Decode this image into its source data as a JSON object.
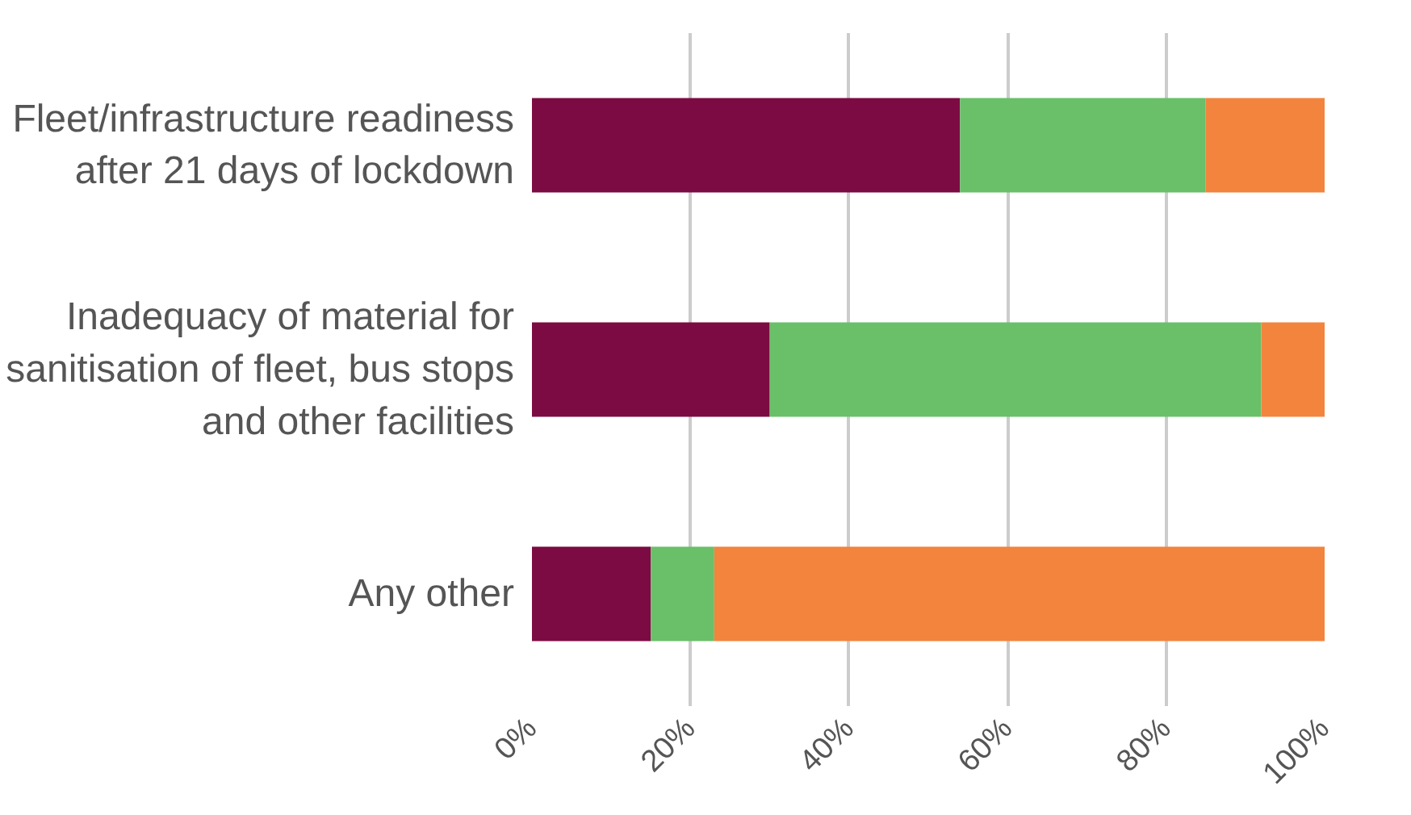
{
  "chart_data": {
    "type": "bar",
    "orientation": "horizontal",
    "stacked": true,
    "categories": [
      "Fleet/infrastructure readiness after 21 days of lockdown",
      "Inadequacy of material for sanitisation of fleet, bus stops and other facilities",
      "Any other"
    ],
    "series": [
      {
        "color": "#7b0b42",
        "values": [
          54,
          30,
          15
        ]
      },
      {
        "color": "#6abf69",
        "values": [
          31,
          62,
          8
        ]
      },
      {
        "color": "#f2843e",
        "values": [
          15,
          8,
          77
        ]
      }
    ],
    "xlim": [
      0,
      100
    ],
    "xticks": [
      {
        "value": 0,
        "label": "0%"
      },
      {
        "value": 20,
        "label": "20%"
      },
      {
        "value": 40,
        "label": "40%"
      },
      {
        "value": 60,
        "label": "60%"
      },
      {
        "value": 80,
        "label": "80%"
      },
      {
        "value": 100,
        "label": "100%"
      }
    ],
    "grid": "x"
  }
}
